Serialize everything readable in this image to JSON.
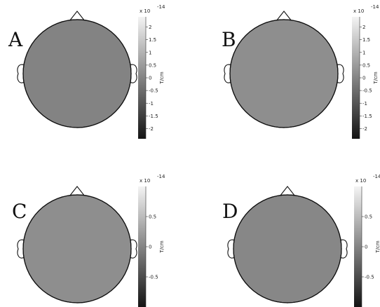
{
  "figure": {
    "exponent_label": "x 10",
    "exponent_power": "-14"
  },
  "chart_data": [
    {
      "type": "heatmap",
      "panel": "A",
      "colorbar": {
        "unit": "T/cm",
        "range": [
          -2.4,
          2.4
        ],
        "ticks": [
          2,
          1.5,
          1,
          0.5,
          0,
          -0.5,
          -1,
          -1.5,
          -2
        ],
        "tick_labels": [
          "2",
          "1.5",
          "1",
          "0.5",
          "0",
          "-0.5",
          "-1",
          "-1.5",
          "-2"
        ]
      },
      "map_level": 0.5,
      "colors": {
        "low": "#141414",
        "high": "#f2f2f2"
      }
    },
    {
      "type": "heatmap",
      "panel": "B",
      "colorbar": {
        "unit": "T/cm",
        "range": [
          -2.4,
          2.4
        ],
        "ticks": [
          2,
          1.5,
          1,
          0.5,
          0,
          -0.5,
          -1,
          -1.5,
          -2
        ],
        "tick_labels": [
          "2",
          "1.5",
          "1",
          "0.5",
          "0",
          "-0.5",
          "-1",
          "-1.5",
          "-2"
        ]
      },
      "map_level": 0.55,
      "colors": {
        "low": "#141414",
        "high": "#f2f2f2"
      }
    },
    {
      "type": "heatmap",
      "panel": "C",
      "colorbar": {
        "unit": "T/cm",
        "range": [
          -1.0,
          1.0
        ],
        "ticks": [
          0.5,
          0,
          -0.5
        ],
        "tick_labels": [
          "0.5",
          "0",
          "-0.5"
        ]
      },
      "map_level": 0.55,
      "colors": {
        "low": "#141414",
        "high": "#f2f2f2"
      }
    },
    {
      "type": "heatmap",
      "panel": "D",
      "colorbar": {
        "unit": "T/cm",
        "range": [
          -1.0,
          1.0
        ],
        "ticks": [
          0.5,
          0,
          -0.5
        ],
        "tick_labels": [
          "0.5",
          "0",
          "-0.5"
        ]
      },
      "map_level": 0.52,
      "colors": {
        "low": "#141414",
        "high": "#f2f2f2"
      }
    }
  ]
}
